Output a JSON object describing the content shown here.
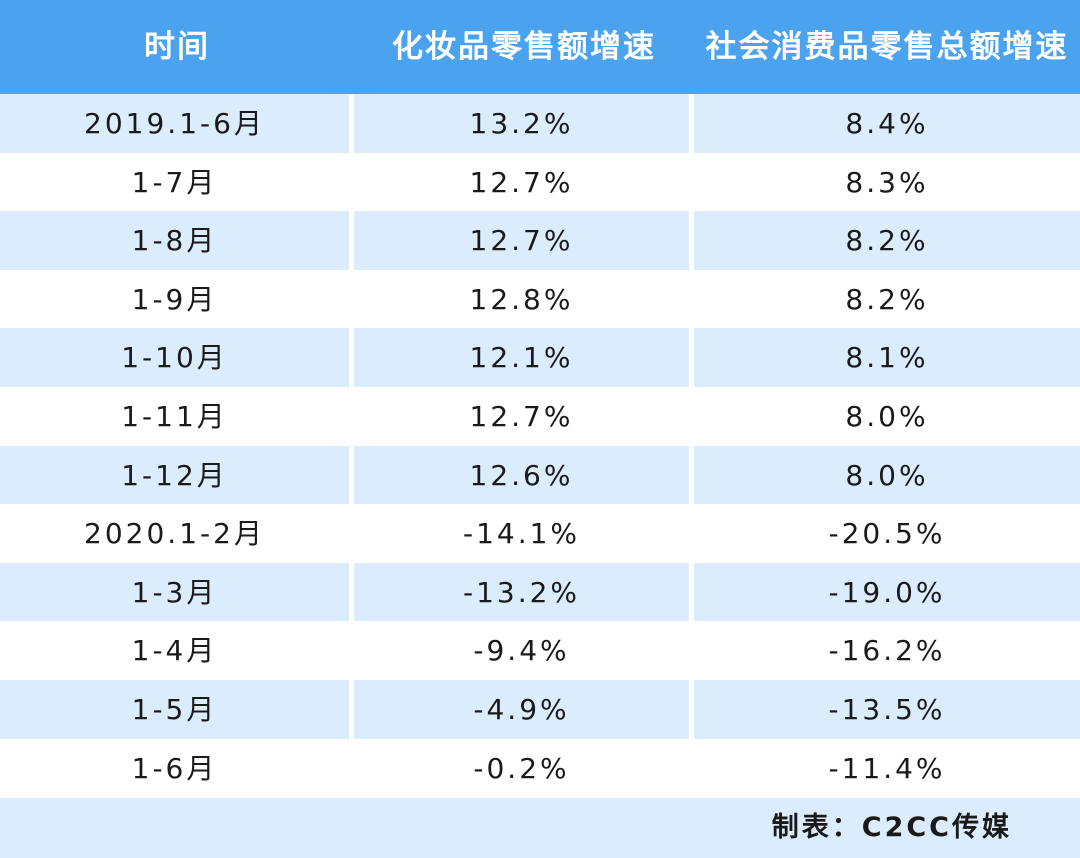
{
  "table": {
    "headers": [
      "时间",
      "化妆品零售额增速",
      "社会消费品零售总额增速"
    ],
    "rows": [
      [
        "2019.1-6月",
        "13.2%",
        "8.4%"
      ],
      [
        "1-7月",
        "12.7%",
        "8.3%"
      ],
      [
        "1-8月",
        "12.7%",
        "8.2%"
      ],
      [
        "1-9月",
        "12.8%",
        "8.2%"
      ],
      [
        "1-10月",
        "12.1%",
        "8.1%"
      ],
      [
        "1-11月",
        "12.7%",
        "8.0%"
      ],
      [
        "1-12月",
        "12.6%",
        "8.0%"
      ],
      [
        "2020.1-2月",
        "-14.1%",
        "-20.5%"
      ],
      [
        "1-3月",
        "-13.2%",
        "-19.0%"
      ],
      [
        "1-4月",
        "-9.4%",
        "-16.2%"
      ],
      [
        "1-5月",
        "-4.9%",
        "-13.5%"
      ],
      [
        "1-6月",
        "-0.2%",
        "-11.4%"
      ]
    ],
    "credit": "制表：C2CC传媒"
  },
  "colors": {
    "header_bg": "#4ba3ef",
    "stripe_bg": "#dbecfc",
    "text": "#1a1a1a"
  }
}
